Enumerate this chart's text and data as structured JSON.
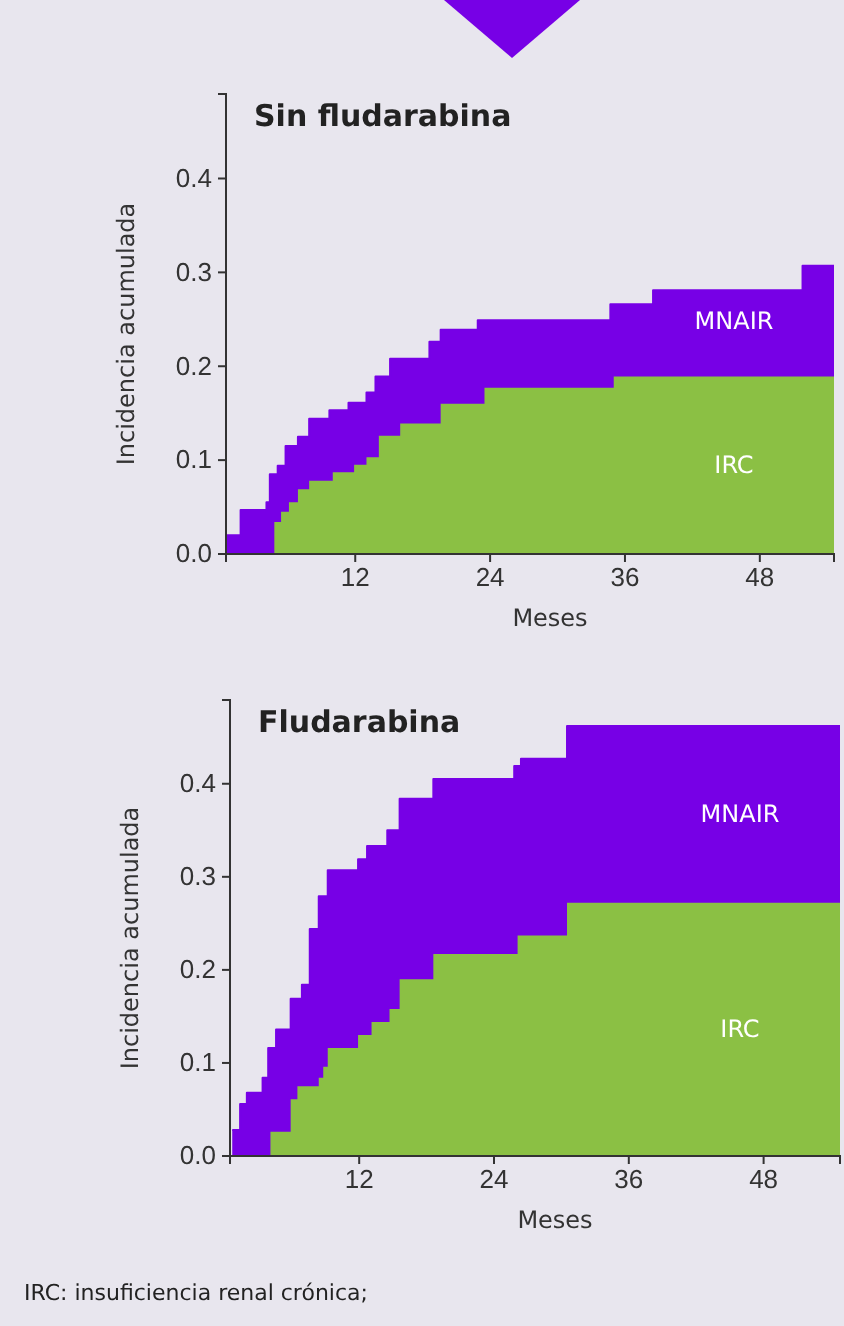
{
  "chart_data": [
    {
      "type": "area",
      "title": "Sin fludarabina",
      "xlabel": "Meses",
      "ylabel": "Incidencia acumulada",
      "stacked": true,
      "legend": false,
      "x": [
        0.5,
        1.8,
        1.8,
        4.1,
        4.1,
        4.4,
        4.4,
        4.8,
        4.8,
        5.1,
        5.1,
        5.4,
        5.4,
        5.8,
        5.8,
        6.1,
        6.1,
        6.9,
        6.9,
        7.9,
        7.9,
        9.7,
        9.7,
        10.0,
        10.0,
        11.4,
        11.4,
        11.9,
        11.9,
        13.0,
        13.0,
        13.8,
        13.8,
        14.1,
        14.1,
        15.1,
        15.1,
        16.0,
        16.0,
        18.6,
        18.6,
        19.6,
        19.6,
        22.9,
        22.9,
        23.5,
        23.5,
        34.7,
        34.7,
        35.0,
        35.0,
        38.5,
        38.5,
        51.8,
        51.8,
        54.6
      ],
      "series": [
        {
          "name": "IRC",
          "color": "#8bc044",
          "values": [
            0,
            0,
            0,
            0,
            0,
            0,
            0,
            0,
            0.034,
            0.034,
            0.034,
            0.034,
            0.045,
            0.045,
            0.045,
            0.045,
            0.055,
            0.055,
            0.069,
            0.069,
            0.078,
            0.078,
            0.078,
            0.078,
            0.087,
            0.087,
            0.087,
            0.087,
            0.095,
            0.095,
            0.103,
            0.103,
            0.103,
            0.103,
            0.126,
            0.126,
            0.126,
            0.126,
            0.139,
            0.139,
            0.139,
            0.139,
            0.16,
            0.16,
            0.16,
            0.16,
            0.177,
            0.177,
            0.177,
            0.177,
            0.189,
            0.189,
            0.189,
            0.189,
            0.189,
            0.189
          ]
        },
        {
          "name": "MNAIR",
          "color": "#7700e6",
          "values": [
            0.02,
            0.02,
            0.047,
            0.047,
            0.055,
            0.055,
            0.085,
            0.085,
            0.051,
            0.051,
            0.06,
            0.06,
            0.049,
            0.049,
            0.07,
            0.07,
            0.06,
            0.06,
            0.056,
            0.056,
            0.066,
            0.066,
            0.075,
            0.075,
            0.066,
            0.066,
            0.074,
            0.074,
            0.066,
            0.066,
            0.069,
            0.069,
            0.086,
            0.086,
            0.063,
            0.063,
            0.082,
            0.082,
            0.069,
            0.069,
            0.087,
            0.087,
            0.079,
            0.079,
            0.089,
            0.089,
            0.072,
            0.072,
            0.089,
            0.089,
            0.077,
            0.077,
            0.092,
            0.092,
            0.118,
            0.118
          ]
        }
      ],
      "xlim": [
        0.5,
        54.6
      ],
      "xticks": [
        12,
        24,
        36,
        48
      ],
      "ylim": [
        0,
        0.49
      ],
      "yticks": [
        {
          "value": 0,
          "label": "0.0"
        },
        0.1,
        0.2,
        0.3,
        0.4
      ]
    },
    {
      "type": "area",
      "title": "Fludarabina",
      "xlabel": "Meses",
      "ylabel": "Incidencia acumulada",
      "stacked": true,
      "legend": false,
      "x": [
        0.7,
        1.4,
        1.4,
        2.0,
        2.0,
        3.4,
        3.4,
        3.9,
        3.9,
        4.1,
        4.1,
        4.6,
        4.6,
        5.9,
        5.9,
        6.5,
        6.5,
        6.9,
        6.9,
        7.6,
        7.6,
        8.4,
        8.4,
        8.8,
        8.8,
        9.2,
        9.2,
        11.9,
        11.9,
        12.7,
        12.7,
        13.1,
        13.1,
        14.5,
        14.5,
        14.7,
        14.7,
        15.6,
        15.6,
        18.6,
        18.6,
        25.8,
        25.8,
        26.1,
        26.1,
        26.4,
        26.4,
        30.5,
        30.5,
        54.8
      ],
      "series": [
        {
          "name": "IRC",
          "color": "#8bc044",
          "values": [
            0,
            0,
            0,
            0,
            0,
            0,
            0,
            0,
            0,
            0,
            0.026,
            0.026,
            0.026,
            0.026,
            0.061,
            0.061,
            0.075,
            0.075,
            0.075,
            0.075,
            0.075,
            0.075,
            0.084,
            0.084,
            0.096,
            0.096,
            0.116,
            0.116,
            0.13,
            0.13,
            0.13,
            0.13,
            0.144,
            0.144,
            0.144,
            0.144,
            0.158,
            0.158,
            0.19,
            0.19,
            0.217,
            0.217,
            0.217,
            0.217,
            0.237,
            0.237,
            0.237,
            0.237,
            0.272,
            0.272
          ]
        },
        {
          "name": "MNAIR",
          "color": "#7700e6",
          "values": [
            0.028,
            0.028,
            0.056,
            0.056,
            0.068,
            0.068,
            0.084,
            0.084,
            0.116,
            0.116,
            0.09,
            0.09,
            0.11,
            0.11,
            0.108,
            0.108,
            0.094,
            0.094,
            0.109,
            0.109,
            0.169,
            0.169,
            0.195,
            0.195,
            0.183,
            0.183,
            0.191,
            0.191,
            0.189,
            0.189,
            0.203,
            0.203,
            0.189,
            0.189,
            0.206,
            0.206,
            0.192,
            0.192,
            0.194,
            0.194,
            0.188,
            0.188,
            0.202,
            0.202,
            0.182,
            0.182,
            0.19,
            0.19,
            0.19,
            0.19
          ]
        }
      ],
      "xlim": [
        0.5,
        54.8
      ],
      "xticks": [
        12,
        24,
        36,
        48
      ],
      "ylim": [
        0,
        0.49
      ],
      "yticks": [
        {
          "value": 0,
          "label": "0.0"
        },
        0.1,
        0.2,
        0.3,
        0.4
      ],
      "annotations": [
        "IRC: insuficiencia renal crónica;"
      ]
    }
  ]
}
